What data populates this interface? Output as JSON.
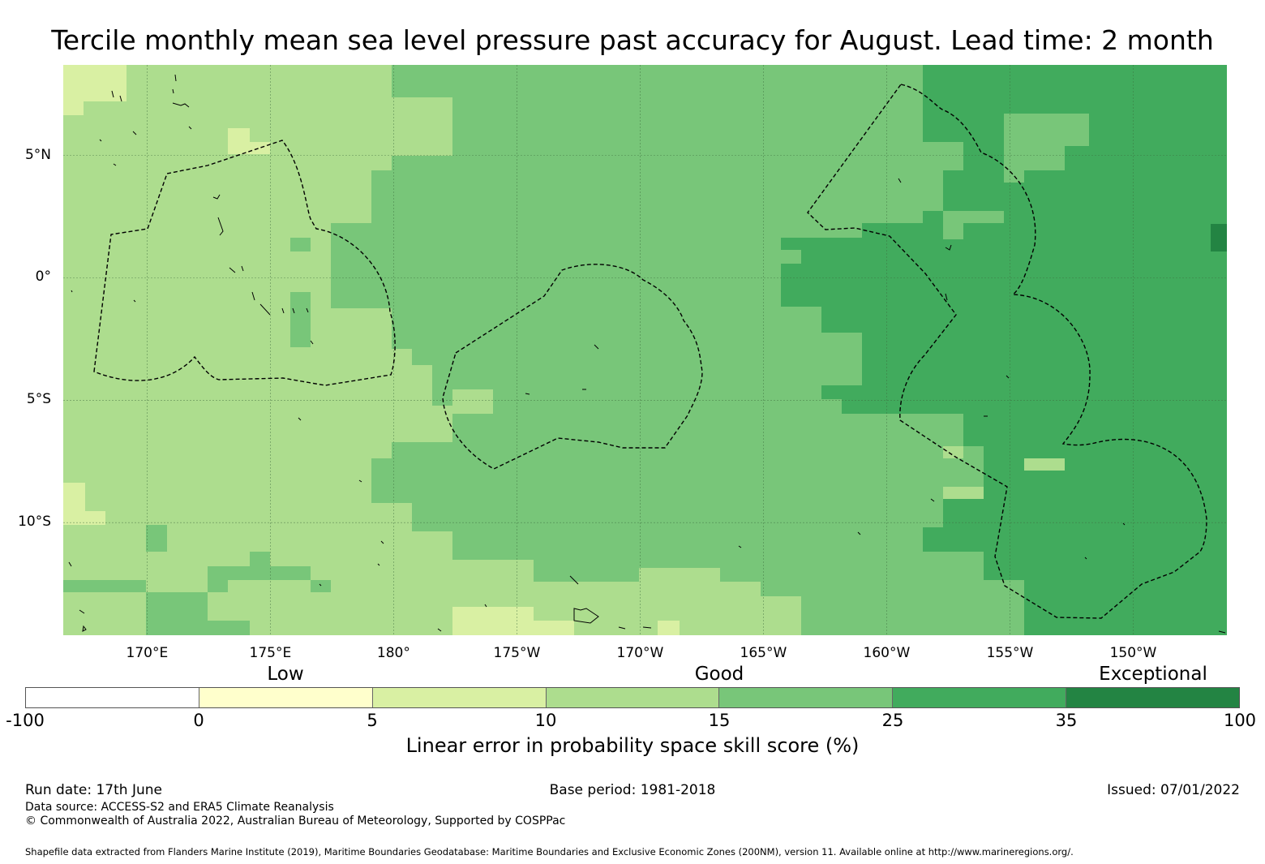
{
  "title": "Tercile monthly mean sea level pressure past accuracy for August. Lead time: 2 month",
  "map": {
    "lat_labels": [
      {
        "text": "5°N",
        "lat": 5
      },
      {
        "text": "0°",
        "lat": 0
      },
      {
        "text": "5°S",
        "lat": -5
      },
      {
        "text": "10°S",
        "lat": -10
      }
    ],
    "lon_labels": [
      {
        "text": "170°E",
        "lon": 170
      },
      {
        "text": "175°E",
        "lon": 175
      },
      {
        "text": "180°",
        "lon": 180
      },
      {
        "text": "175°W",
        "lon": 185
      },
      {
        "text": "170°W",
        "lon": 190
      },
      {
        "text": "165°W",
        "lon": 195
      },
      {
        "text": "160°W",
        "lon": 200
      },
      {
        "text": "155°W",
        "lon": 205
      },
      {
        "text": "150°W",
        "lon": 210
      }
    ],
    "extent": {
      "lon_min": 166.6,
      "lon_max": 213.8,
      "lat_min": -14.6,
      "lat_max": 8.7
    },
    "colors": {
      "0_5": "#ffffcc",
      "5_10": "#d9f0a3",
      "10_15": "#addd8e",
      "15_25": "#78c679",
      "25_35": "#41ab5d",
      "35_100": "#238443"
    }
  },
  "colorbar": {
    "categories": [
      {
        "label": "Low",
        "value": 2.5
      },
      {
        "label": "Good",
        "value": 15
      },
      {
        "label": "Exceptional",
        "value": 67.5
      }
    ],
    "ticks": [
      "-100",
      "0",
      "5",
      "10",
      "15",
      "25",
      "35",
      "100"
    ],
    "colors": [
      "#ffffff",
      "#ffffcc",
      "#d9f0a3",
      "#addd8e",
      "#78c679",
      "#41ab5d",
      "#238443"
    ],
    "label": "Linear error in probability space skill score (%)"
  },
  "footer": {
    "run_date": "Run date: 17th June",
    "base_period": "Base period: 1981-2018",
    "issued": "Issued: 07/01/2022",
    "data_source": "Data source: ACCESS-S2 and ERA5 Climate Reanalysis",
    "copyright": "© Commonwealth of Australia 2022, Australian Bureau of Meteorology, Supported by COSPPac",
    "shapefile": "Shapefile data extracted from Flanders Marine Institute (2019), Maritime Boundaries Geodatabase: Maritime Boundaries and Exclusive Economic Zones (200NM), version 11. Available online at http://www.marineregions.org/."
  }
}
